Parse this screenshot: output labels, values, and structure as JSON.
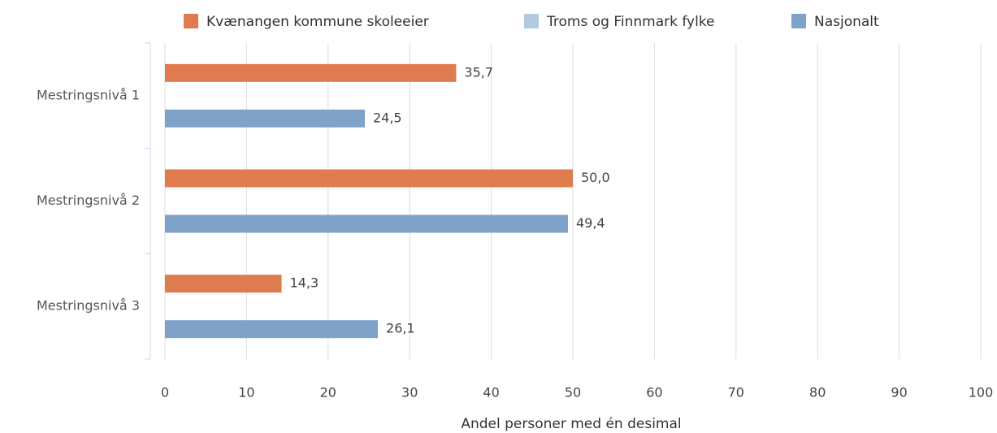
{
  "chart_data": {
    "type": "bar",
    "orientation": "horizontal",
    "categories": [
      "Mestringsnivå 1",
      "Mestringsnivå 2",
      "Mestringsnivå 3"
    ],
    "series": [
      {
        "name": "Kvænangen kommune skoleeier",
        "color": "#e07b4f",
        "values": [
          35.7,
          50.0,
          14.3
        ],
        "value_labels": [
          "35,7",
          "50,0",
          "14,3"
        ]
      },
      {
        "name": "Troms og Finnmark fylke",
        "color": "#b3c9e0",
        "values": [
          null,
          null,
          null
        ]
      },
      {
        "name": "Nasjonalt",
        "color": "#7fa3c8",
        "values": [
          24.5,
          49.4,
          26.1
        ],
        "value_labels": [
          "24,5",
          "49,4",
          "26,1"
        ]
      }
    ],
    "xlabel": "Andel personer med én desimal",
    "xlim": [
      0,
      100
    ],
    "xticks": [
      0,
      10,
      20,
      30,
      40,
      50,
      60,
      70,
      80,
      90,
      100
    ],
    "grid": true,
    "legend": "top"
  }
}
